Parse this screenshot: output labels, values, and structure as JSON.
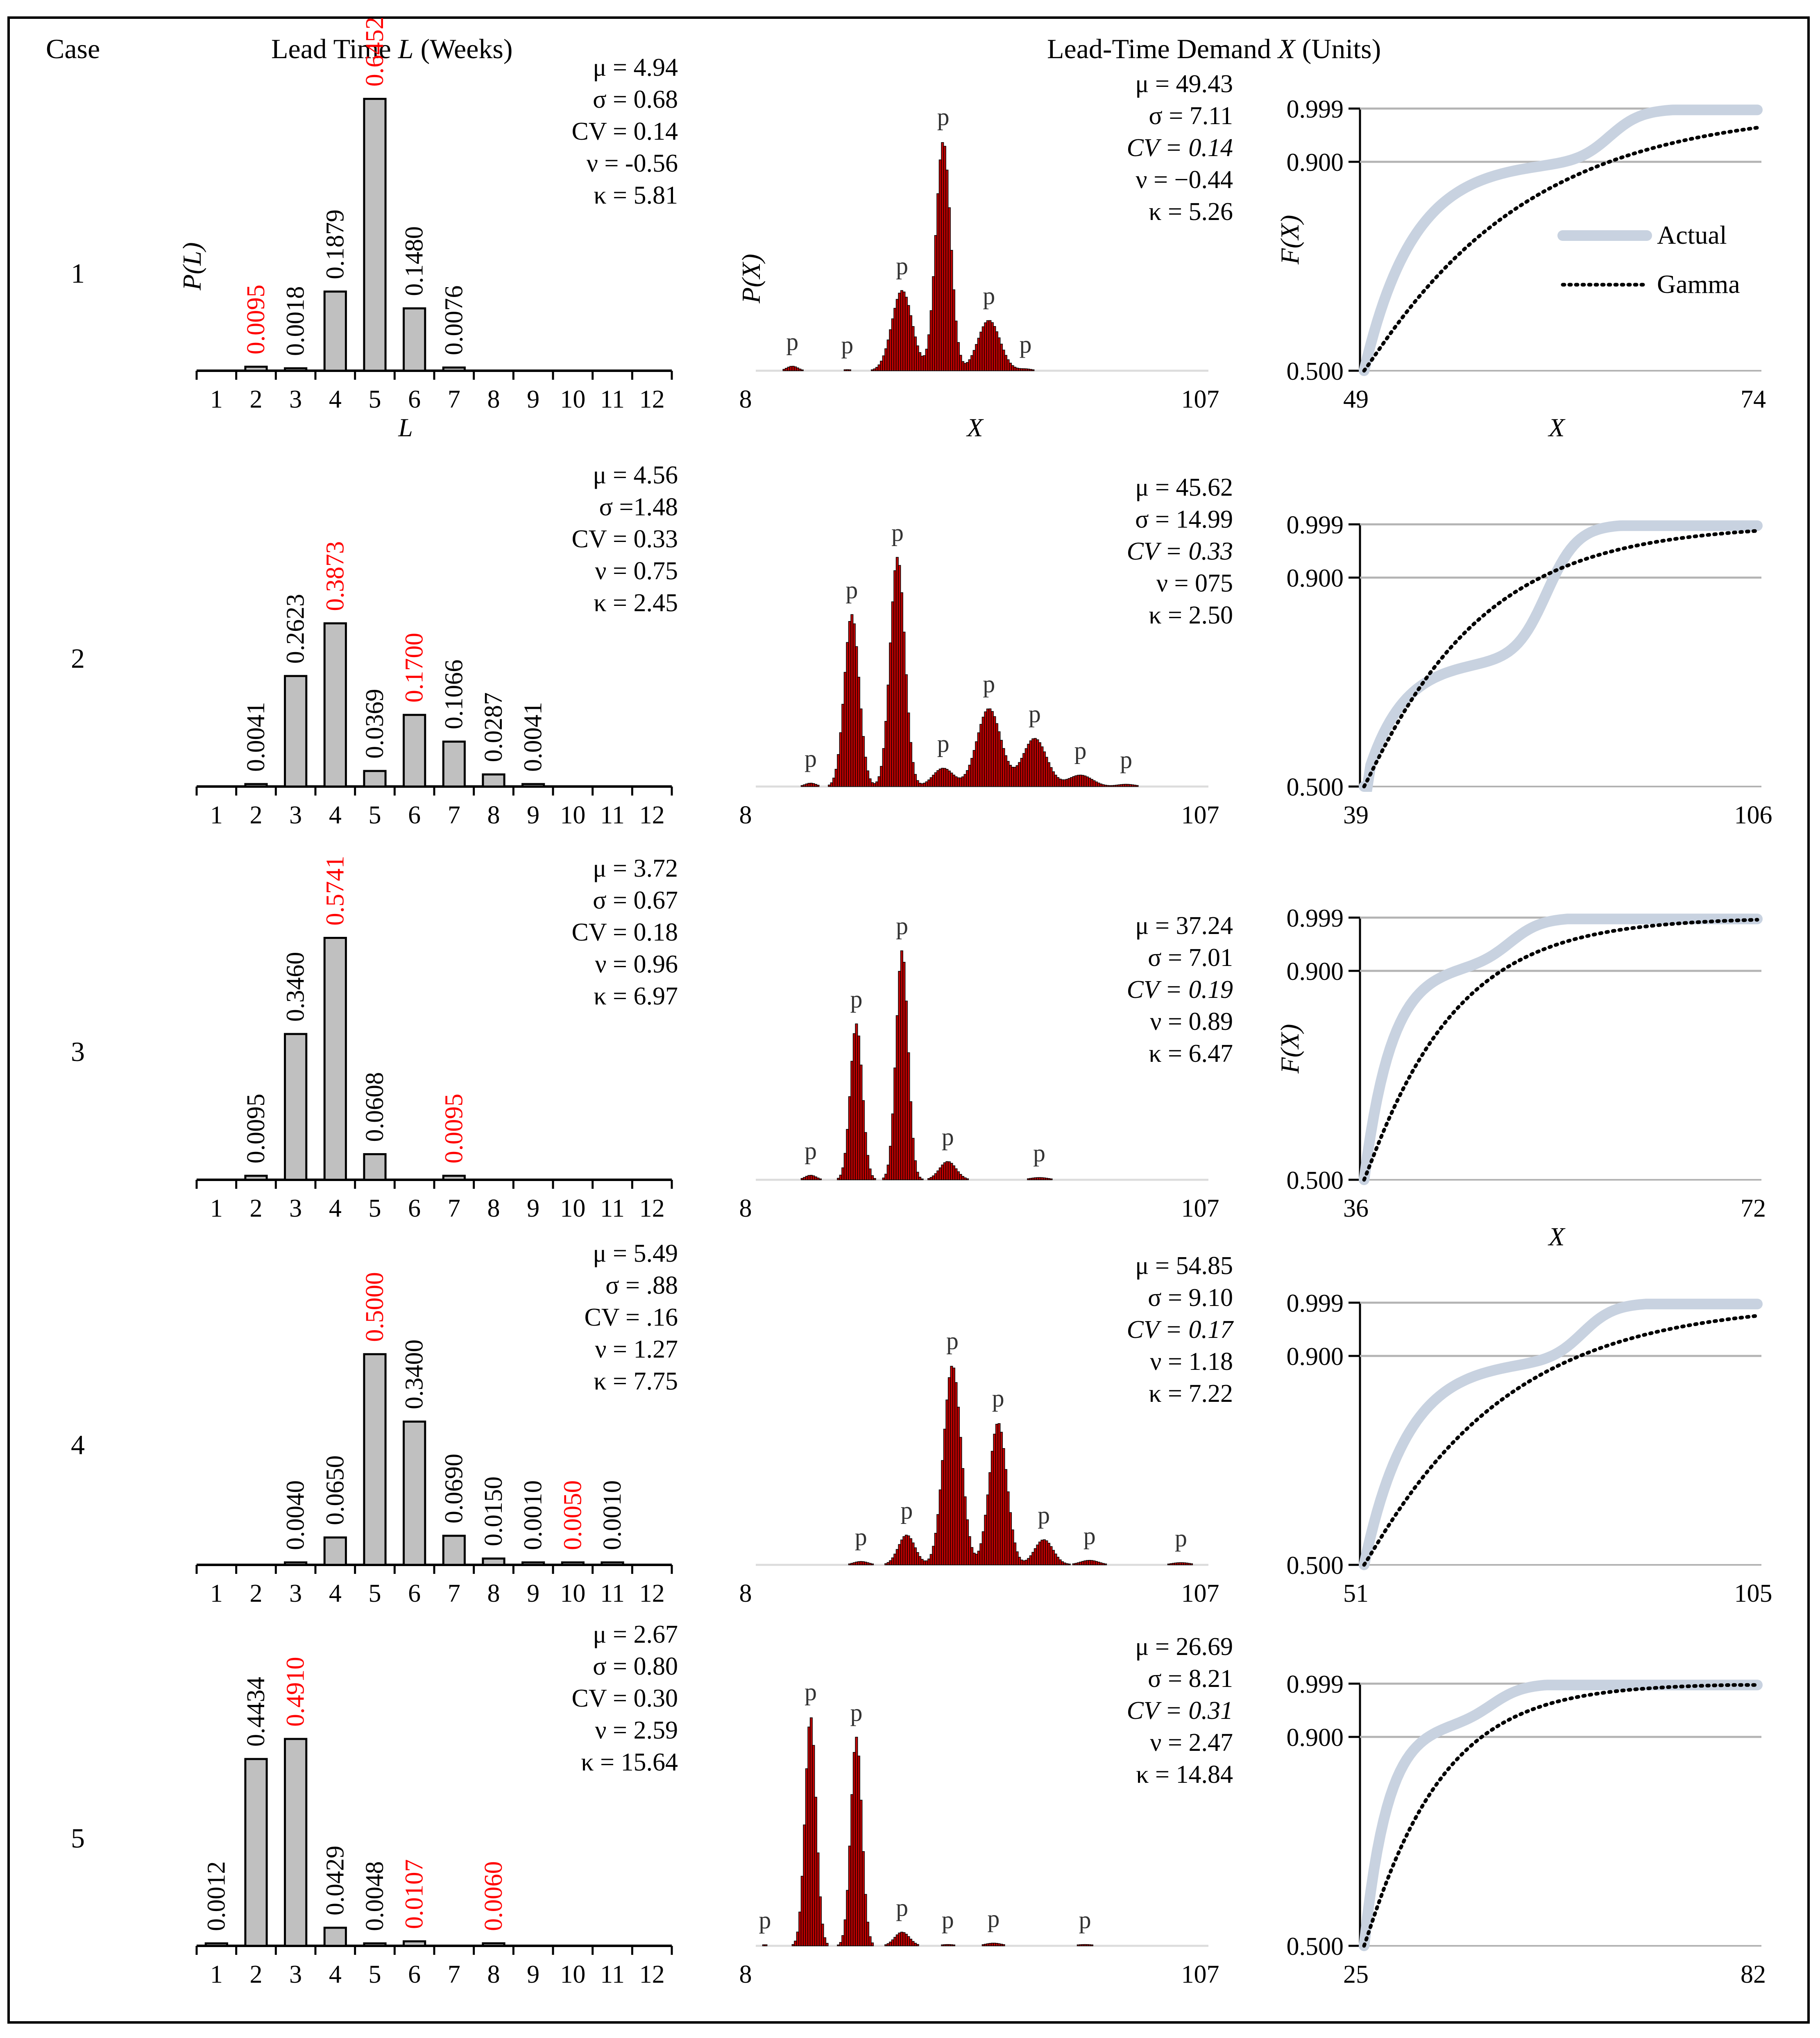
{
  "headers": {
    "case": "Case",
    "lead_time_prefix": "Lead Time ",
    "lead_time_var": "L",
    "lead_time_suffix": " (Weeks)",
    "ltd_prefix": "Lead-Time Demand ",
    "ltd_var": "X",
    "ltd_suffix": " (Units)"
  },
  "axis_labels": {
    "pL": "P(L)",
    "L": "L",
    "pX": "P(X)",
    "X": "X",
    "FX": "F(X)"
  },
  "legend": {
    "actual": "Actual",
    "gamma": "Gamma"
  },
  "colors": {
    "bar_gray": "#c0c0c0",
    "bar_red": "#c00000",
    "highlight_red": "#ff0000",
    "actual_line": "#c8d2e0",
    "gamma_line": "#000000",
    "grid": "#b3b3b3"
  },
  "peak_label": "p",
  "chart_data": [
    {
      "case": "1",
      "type": "bar",
      "lead_time": {
        "categories": [
          "1",
          "2",
          "3",
          "4",
          "5",
          "6",
          "7",
          "8",
          "9",
          "10",
          "11",
          "12"
        ],
        "values": [
          0,
          0.0095,
          0.0018,
          0.1879,
          0.6452,
          0.148,
          0.0076,
          0,
          0,
          0,
          0,
          0
        ],
        "labels": [
          "",
          "0.0095",
          "0.0018",
          "0.1879",
          "0.6452",
          "0.1480",
          "0.0076",
          "",
          "",
          "",
          "",
          ""
        ],
        "highlight": [
          false,
          true,
          false,
          false,
          true,
          false,
          false,
          false,
          false,
          false,
          false,
          false
        ],
        "ymax": 0.7,
        "stats": [
          "μ = 4.94",
          "σ = 0.68",
          "CV = 0.14",
          "ν = -0.56",
          "κ = 5.81"
        ]
      },
      "demand": {
        "xmin": "8",
        "xmax": "107",
        "stats": [
          "μ = 49.43",
          "σ = 7.11",
          "CV = 0.14",
          "ν = −0.44",
          "κ = 5.26"
        ],
        "peaks": [
          {
            "x": 16,
            "h": 0.02
          },
          {
            "x": 28,
            "h": 0.005
          },
          {
            "x": 40,
            "h": 0.35
          },
          {
            "x": 49,
            "h": 1.0
          },
          {
            "x": 59,
            "h": 0.22
          },
          {
            "x": 67,
            "h": 0.008
          }
        ],
        "widths": [
          1.2,
          1.2,
          2.2,
          1.6,
          2.4,
          1.5
        ]
      },
      "cdf": {
        "xmin": "49",
        "xmax": "74",
        "yticks": [
          "0.999",
          "0.900",
          "0.500"
        ],
        "show_fx": true,
        "show_x": true,
        "show_legend": true
      }
    },
    {
      "case": "2",
      "type": "bar",
      "lead_time": {
        "categories": [
          "1",
          "2",
          "3",
          "4",
          "5",
          "6",
          "7",
          "8",
          "9",
          "10",
          "11",
          "12"
        ],
        "values": [
          0,
          0.0041,
          0.2623,
          0.3873,
          0.0369,
          0.17,
          0.1066,
          0.0287,
          0.0041,
          0,
          0,
          0
        ],
        "labels": [
          "",
          "0.0041",
          "0.2623",
          "0.3873",
          "0.0369",
          "0.1700",
          "0.1066",
          "0.0287",
          "0.0041",
          "",
          "",
          ""
        ],
        "highlight": [
          false,
          false,
          false,
          true,
          false,
          true,
          false,
          false,
          false,
          false,
          false,
          false
        ],
        "ymax": 0.7,
        "stats": [
          "μ = 4.56",
          "σ =1.48",
          "CV = 0.33",
          "ν = 0.75",
          "κ = 2.45"
        ]
      },
      "demand": {
        "xmin": "8",
        "xmax": "107",
        "stats": [
          "μ = 45.62",
          "σ = 14.99",
          "CV = 0.33",
          "ν = 075",
          "κ = 2.50"
        ],
        "peaks": [
          {
            "x": 20,
            "h": 0.015
          },
          {
            "x": 29,
            "h": 0.75
          },
          {
            "x": 39,
            "h": 1.0
          },
          {
            "x": 49,
            "h": 0.08
          },
          {
            "x": 59,
            "h": 0.34
          },
          {
            "x": 69,
            "h": 0.21
          },
          {
            "x": 79,
            "h": 0.05
          },
          {
            "x": 89,
            "h": 0.01
          }
        ],
        "widths": [
          1.2,
          1.6,
          1.6,
          2.2,
          2.6,
          2.6,
          2.6,
          2.0
        ]
      },
      "cdf": {
        "xmin": "39",
        "xmax": "106",
        "yticks": [
          "0.999",
          "0.900",
          "0.500"
        ],
        "show_fx": false,
        "show_x": false,
        "show_legend": false
      }
    },
    {
      "case": "3",
      "type": "bar",
      "lead_time": {
        "categories": [
          "1",
          "2",
          "3",
          "4",
          "5",
          "6",
          "7",
          "8",
          "9",
          "10",
          "11",
          "12"
        ],
        "values": [
          0,
          0.0095,
          0.346,
          0.5741,
          0.0608,
          0,
          0.0095,
          0,
          0,
          0,
          0,
          0
        ],
        "labels": [
          "",
          "0.0095",
          "0.3460",
          "0.5741",
          "0.0608",
          "",
          "0.0095",
          "",
          "",
          "",
          "",
          ""
        ],
        "highlight": [
          false,
          false,
          false,
          true,
          false,
          false,
          true,
          false,
          false,
          false,
          false,
          false
        ],
        "ymax": 0.7,
        "stats": [
          "μ = 3.72",
          "σ = 0.67",
          "CV = 0.18",
          "ν = 0.96",
          "κ = 6.97"
        ]
      },
      "demand": {
        "xmin": "8",
        "xmax": "107",
        "stats": [
          "μ = 37.24",
          "σ = 7.01",
          "CV = 0.19",
          "ν = 0.89",
          "κ = 6.47"
        ],
        "peaks": [
          {
            "x": 20,
            "h": 0.02
          },
          {
            "x": 30,
            "h": 0.68
          },
          {
            "x": 40,
            "h": 1.0
          },
          {
            "x": 50,
            "h": 0.08
          },
          {
            "x": 70,
            "h": 0.01
          }
        ],
        "widths": [
          1.2,
          1.3,
          1.3,
          1.8,
          2.0
        ]
      },
      "cdf": {
        "xmin": "36",
        "xmax": "72",
        "yticks": [
          "0.999",
          "0.900",
          "0.500"
        ],
        "show_fx": true,
        "show_x": true,
        "show_legend": false
      }
    },
    {
      "case": "4",
      "type": "bar",
      "lead_time": {
        "categories": [
          "1",
          "2",
          "3",
          "4",
          "5",
          "6",
          "7",
          "8",
          "9",
          "10",
          "11",
          "12"
        ],
        "values": [
          0,
          0,
          0.004,
          0.065,
          0.5,
          0.34,
          0.069,
          0.015,
          0.001,
          0.005,
          0.001,
          0
        ],
        "labels": [
          "",
          "",
          "0.0040",
          "0.0650",
          "0.5000",
          "0.3400",
          "0.0690",
          "0.0150",
          "0.0010",
          "0.0050",
          "0.0010",
          ""
        ],
        "highlight": [
          false,
          false,
          false,
          false,
          true,
          false,
          false,
          false,
          false,
          true,
          false,
          false
        ],
        "ymax": 0.7,
        "stats": [
          "μ = 5.49",
          "σ = .88",
          "CV = .16",
          "ν = 1.27",
          "κ = 7.75"
        ]
      },
      "demand": {
        "xmin": "8",
        "xmax": "107",
        "stats": [
          "μ = 54.85",
          "σ = 9.10",
          "CV = 0.17",
          "ν = 1.18",
          "κ = 7.22"
        ],
        "peaks": [
          {
            "x": 31,
            "h": 0.015
          },
          {
            "x": 41,
            "h": 0.13
          },
          {
            "x": 51,
            "h": 0.87
          },
          {
            "x": 61,
            "h": 0.62
          },
          {
            "x": 71,
            "h": 0.11
          },
          {
            "x": 81,
            "h": 0.02
          },
          {
            "x": 101,
            "h": 0.01
          }
        ],
        "widths": [
          1.6,
          1.8,
          1.9,
          1.9,
          2.0,
          2.0,
          2.0
        ]
      },
      "cdf": {
        "xmin": "51",
        "xmax": "105",
        "yticks": [
          "0.999",
          "0.900",
          "0.500"
        ],
        "show_fx": false,
        "show_x": false,
        "show_legend": false
      }
    },
    {
      "case": "5",
      "type": "bar",
      "lead_time": {
        "categories": [
          "1",
          "2",
          "3",
          "4",
          "5",
          "6",
          "7",
          "8",
          "9",
          "10",
          "11",
          "12"
        ],
        "values": [
          0.0012,
          0.4434,
          0.491,
          0.0429,
          0.0048,
          0.0107,
          0,
          0.006,
          0,
          0,
          0,
          0
        ],
        "labels": [
          "0.0012",
          "0.4434",
          "0.4910",
          "0.0429",
          "0.0048",
          "0.0107",
          "",
          "0.0060",
          "",
          "",
          "",
          ""
        ],
        "highlight": [
          false,
          false,
          true,
          false,
          false,
          true,
          false,
          true,
          false,
          false,
          false,
          false
        ],
        "ymax": 0.7,
        "stats": [
          "μ = 2.67",
          "σ = 0.80",
          "CV = 0.30",
          "ν = 2.59",
          "κ = 15.64"
        ]
      },
      "demand": {
        "xmin": "8",
        "xmax": "107",
        "stats": [
          "μ = 26.69",
          "σ = 8.21",
          "CV = 0.31",
          "ν = 2.47",
          "κ = 14.84"
        ],
        "peaks": [
          {
            "x": 10,
            "h": 0.005
          },
          {
            "x": 20,
            "h": 1.0
          },
          {
            "x": 30,
            "h": 0.91
          },
          {
            "x": 40,
            "h": 0.06
          },
          {
            "x": 50,
            "h": 0.006
          },
          {
            "x": 60,
            "h": 0.012
          },
          {
            "x": 80,
            "h": 0.006
          }
        ],
        "widths": [
          1.0,
          1.2,
          1.2,
          1.6,
          1.6,
          1.8,
          2.0
        ]
      },
      "cdf": {
        "xmin": "25",
        "xmax": "82",
        "yticks": [
          "0.999",
          "0.900",
          "0.500"
        ],
        "show_fx": false,
        "show_x": false,
        "show_legend": false
      }
    }
  ]
}
